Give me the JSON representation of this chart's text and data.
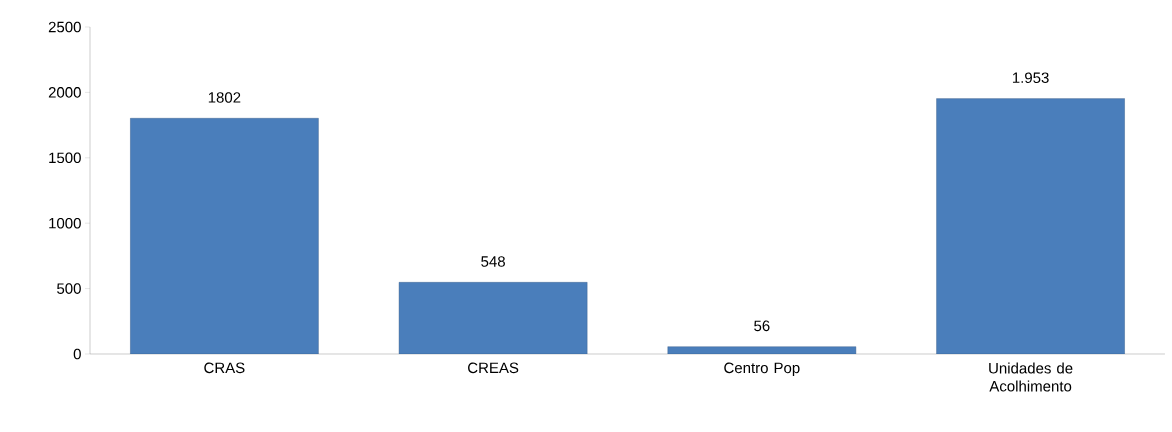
{
  "chart_data": {
    "type": "bar",
    "categories": [
      "CRAS",
      "CREAS",
      "Centro Pop",
      "Unidades de Acolhimento"
    ],
    "values": [
      1802,
      548,
      56,
      1953
    ],
    "value_labels": [
      "1802",
      "548",
      "56",
      "1.953"
    ],
    "color": "#4a7ebb",
    "ylim": [
      0,
      2500
    ],
    "yticks": [
      0,
      500,
      1000,
      1500,
      2000,
      2500
    ]
  }
}
